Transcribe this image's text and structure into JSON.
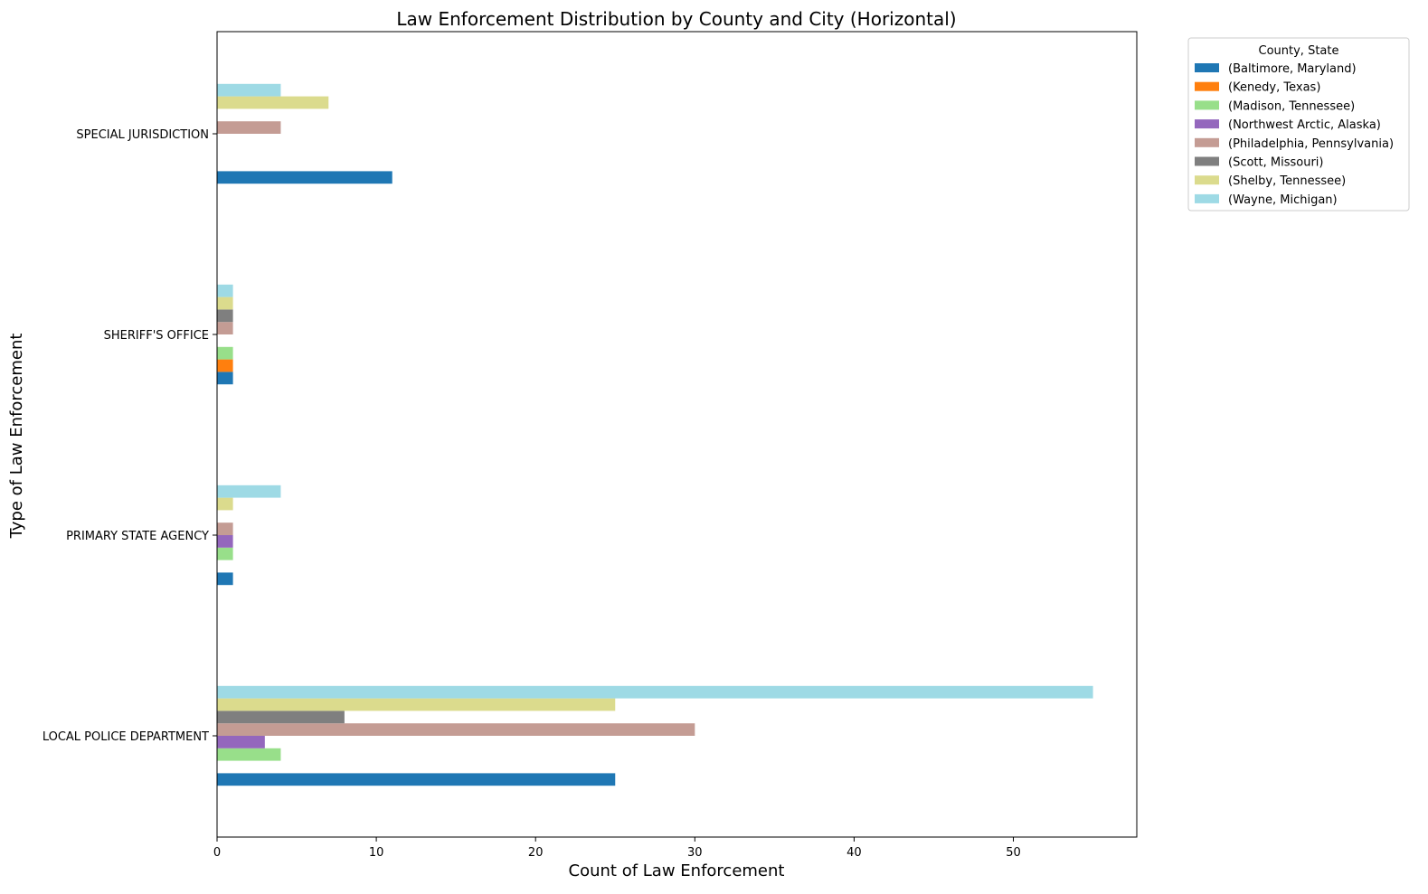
{
  "chart_data": {
    "type": "bar",
    "orientation": "horizontal",
    "title": "Law Enforcement Distribution by County and City (Horizontal)",
    "xlabel": "Count of Law Enforcement",
    "ylabel": "Type of Law Enforcement",
    "xlim": [
      0,
      57.75
    ],
    "x_ticks": [
      0,
      10,
      20,
      30,
      40,
      50
    ],
    "categories": [
      "LOCAL POLICE DEPARTMENT",
      "PRIMARY STATE AGENCY",
      "SHERIFF'S OFFICE",
      "SPECIAL JURISDICTION"
    ],
    "legend": {
      "title": "County, State",
      "placement": "upper right, outside plot"
    },
    "grid": false,
    "series": [
      {
        "name": "(Baltimore, Maryland)",
        "color": "#1f77b4",
        "values": [
          25,
          1,
          1,
          11
        ]
      },
      {
        "name": "(Kenedy, Texas)",
        "color": "#ff7f0e",
        "values": [
          0,
          0,
          1,
          0
        ]
      },
      {
        "name": "(Madison, Tennessee)",
        "color": "#98df8a",
        "values": [
          4,
          1,
          1,
          0
        ]
      },
      {
        "name": "(Northwest Arctic, Alaska)",
        "color": "#9467bd",
        "values": [
          3,
          1,
          0,
          0
        ]
      },
      {
        "name": "(Philadelphia, Pennsylvania)",
        "color": "#c49c94",
        "values": [
          30,
          1,
          1,
          4
        ]
      },
      {
        "name": "(Scott, Missouri)",
        "color": "#7f7f7f",
        "values": [
          8,
          0,
          1,
          0
        ]
      },
      {
        "name": "(Shelby, Tennessee)",
        "color": "#dbdb8d",
        "values": [
          25,
          1,
          1,
          7
        ]
      },
      {
        "name": "(Wayne, Michigan)",
        "color": "#9edae5",
        "values": [
          55,
          4,
          1,
          4
        ]
      }
    ]
  }
}
